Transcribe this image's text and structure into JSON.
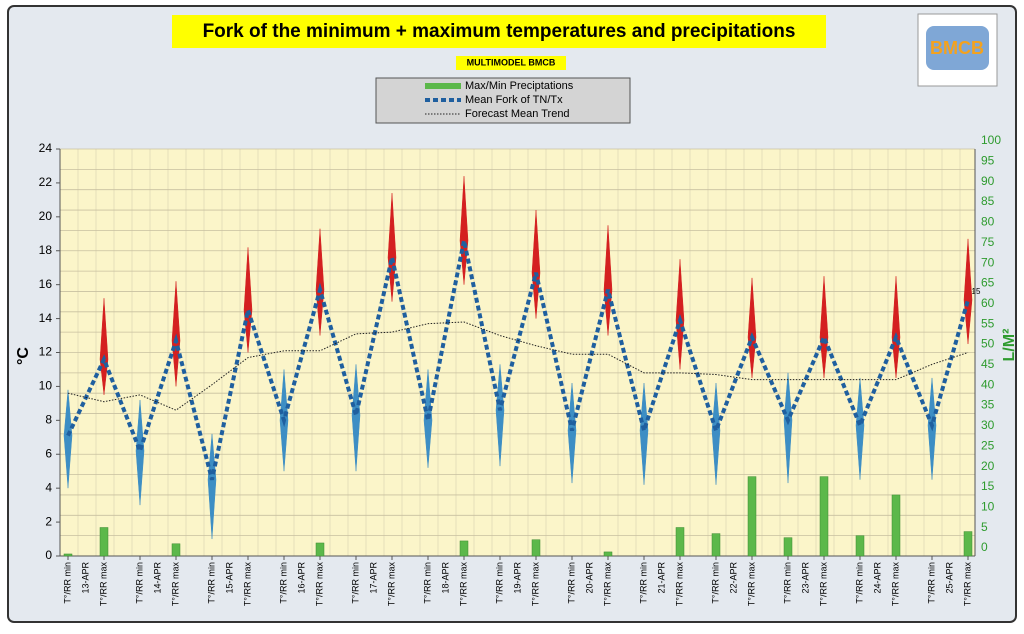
{
  "chart_data": {
    "type": "fork",
    "title": "Fork of the minimum + maximum temperatures and precipitations",
    "subtitle": "MULTIMODEL BMCB",
    "logo_text": "BMCB",
    "ylabel": "°C",
    "y2label": "L/M²",
    "annotation": "15",
    "categories": [
      "T°/RR min",
      "T°/RR max",
      "T°/RR min",
      "T°/RR max",
      "T°/RR min",
      "T°/RR max",
      "T°/RR min",
      "T°/RR max",
      "T°/RR min",
      "T°/RR max",
      "T°/RR min",
      "T°/RR max",
      "T°/RR min",
      "T°/RR max",
      "T°/RR min",
      "T°/RR max",
      "T°/RR min",
      "T°/RR max",
      "T°/RR min",
      "T°/RR max",
      "T°/RR min",
      "T°/RR max",
      "T°/RR min",
      "T°/RR max",
      "T°/RR min",
      "T°/RR max"
    ],
    "dates": [
      "13-APR",
      "14-APR",
      "15-APR",
      "16-APR",
      "17-APR",
      "18-APR",
      "19-APR",
      "20-APR",
      "21-APR",
      "22-APR",
      "23-APR",
      "24-APR",
      "25-APR"
    ],
    "series": [
      {
        "name": "Max/Min Preciptations",
        "color": "#5cb84a",
        "axis": "y2",
        "values": [
          0.5,
          7,
          0,
          3,
          0,
          0,
          0,
          3.2,
          0,
          0,
          0,
          3.7,
          0,
          4,
          0,
          1,
          0,
          7,
          5.5,
          19.5,
          4.5,
          19.5,
          5,
          15,
          0,
          6
        ]
      },
      {
        "name": "Mean Fork of TN/Tx",
        "color": "#1f5f9f",
        "min_color": "#3d8ec4",
        "max_color": "#d42020",
        "values": [
          7.1,
          11.6,
          6.2,
          12.7,
          4.5,
          14.5,
          8.0,
          15.7,
          8.3,
          17.6,
          8.0,
          18.6,
          8.6,
          16.7,
          7.4,
          15.7,
          7.4,
          13.9,
          7.4,
          12.9,
          8.0,
          12.9,
          7.7,
          12.9,
          7.7,
          15.1
        ],
        "low": [
          4.0,
          9.5,
          3.0,
          10.0,
          1.0,
          12.0,
          5.0,
          13.0,
          5.0,
          15.0,
          5.2,
          16.0,
          5.3,
          14.0,
          4.3,
          13.0,
          4.2,
          11.0,
          4.2,
          10.5,
          4.3,
          10.5,
          4.5,
          10.5,
          4.5,
          12.5
        ],
        "high": [
          9.8,
          15.2,
          9.2,
          16.2,
          7.2,
          18.2,
          11.0,
          19.3,
          11.3,
          21.4,
          11.0,
          22.4,
          11.3,
          20.4,
          10.2,
          19.5,
          10.2,
          17.5,
          10.2,
          16.4,
          10.8,
          16.5,
          10.5,
          16.5,
          10.5,
          18.7
        ]
      },
      {
        "name": "Forecast Mean Trend",
        "color": "#222222",
        "values": [
          9.6,
          9.1,
          9.5,
          8.6,
          10.1,
          11.7,
          12.1,
          12.1,
          13.1,
          13.2,
          13.7,
          13.8,
          13.0,
          12.4,
          11.9,
          11.9,
          10.8,
          10.8,
          10.7,
          10.4,
          10.4,
          10.4,
          10.4,
          10.4,
          11.3,
          12.0
        ]
      }
    ],
    "ylim": [
      0,
      24
    ],
    "yticks": [
      0,
      2,
      4,
      6,
      8,
      10,
      12,
      14,
      16,
      18,
      20,
      22,
      24
    ],
    "y2lim": [
      0,
      100
    ],
    "y2ticks": [
      0,
      5,
      10,
      15,
      20,
      25,
      30,
      35,
      40,
      45,
      50,
      55,
      60,
      65,
      70,
      75,
      80,
      85,
      90,
      95,
      100
    ],
    "grid": true
  }
}
